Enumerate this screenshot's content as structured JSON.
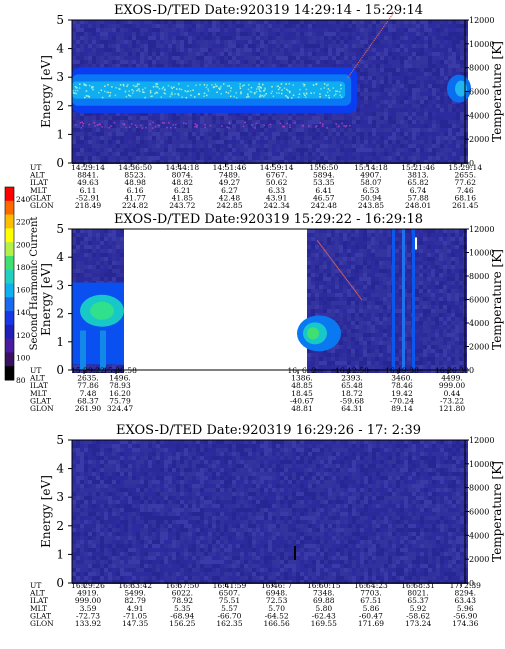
{
  "colorbar": {
    "label": "Second Harmonic Current",
    "ticks": [
      "240",
      "220",
      "200",
      "180",
      "160",
      "140",
      "120",
      "100",
      "80"
    ]
  },
  "chart_data": [
    {
      "type": "heatmap",
      "title": "EXOS-D/TED",
      "date_label": "Date:920319",
      "time_range": "14:29:14 - 15:29:14",
      "ylabel": "Energy [eV]",
      "ylabel_right": "Temperature [K]",
      "ylim": [
        0,
        5
      ],
      "yticks": [
        "0",
        "1",
        "2",
        "3",
        "4",
        "5"
      ],
      "ylim_right": [
        0,
        12000
      ],
      "yticks_right": [
        "0",
        "2000",
        "4000",
        "6000",
        "8000",
        "10000",
        "12000"
      ],
      "row_labels": [
        "UT",
        "ALT",
        "ILAT",
        "MLT",
        "GLAT",
        "GLON"
      ],
      "columns": [
        {
          "UT": "14:29:14",
          "ALT": "8841.",
          "ILAT": "49.63",
          "MLT": "6.11",
          "GLAT": "-52.91",
          "GLON": "218.49"
        },
        {
          "UT": "14:36:50",
          "ALT": "8523.",
          "ILAT": "48.98",
          "MLT": "6.16",
          "GLAT": "41.77",
          "GLON": "224.82"
        },
        {
          "UT": "14:44:18",
          "ALT": "8074.",
          "ILAT": "48.82",
          "MLT": "6.21",
          "GLAT": "41.85",
          "GLON": "243.72"
        },
        {
          "UT": "14:51:46",
          "ALT": "7489.",
          "ILAT": "49.27",
          "MLT": "6.27",
          "GLAT": "42.48",
          "GLON": "242.85"
        },
        {
          "UT": "14:59:14",
          "ALT": "6767.",
          "ILAT": "50.62",
          "MLT": "6.33",
          "GLAT": "43.91",
          "GLON": "242.34"
        },
        {
          "UT": "15:6:50",
          "ALT": "5894.",
          "ILAT": "53.35",
          "MLT": "6.41",
          "GLAT": "46.57",
          "GLON": "242.48"
        },
        {
          "UT": "15:14:18",
          "ALT": "4907.",
          "ILAT": "58.07",
          "MLT": "6.53",
          "GLAT": "50.94",
          "GLON": "243.85"
        },
        {
          "UT": "15:21:46",
          "ALT": "3813.",
          "ILAT": "65.82",
          "MLT": "6.74",
          "GLAT": "57.88",
          "GLON": "248.01"
        },
        {
          "UT": "15:29:14",
          "ALT": "2655.",
          "ILAT": "77.62",
          "MLT": "7.46",
          "GLAT": "68.16",
          "GLON": "261.45"
        }
      ]
    },
    {
      "type": "heatmap",
      "title": "EXOS-D/TED",
      "date_label": "Date:920319",
      "time_range": "15:29:22 - 16:29:18",
      "ylabel": "Energy [eV]",
      "ylabel_right": "Temperature [K]",
      "ylim": [
        0,
        5
      ],
      "yticks": [
        "0",
        "1",
        "2",
        "3",
        "4",
        "5"
      ],
      "ylim_right": [
        0,
        12000
      ],
      "yticks_right": [
        "0",
        "2000",
        "4000",
        "6000",
        "8000",
        "10000",
        "12000"
      ],
      "row_labels": [
        "UT",
        "ALT",
        "ILAT",
        "MLT",
        "GLAT",
        "GLON"
      ],
      "columns": [
        {
          "UT": "15:29:22",
          "ALT": "2635.",
          "ILAT": "77.86",
          "MLT": "7.48",
          "GLAT": "68.37",
          "GLON": "261.90"
        },
        {
          "UT": "15:36:58",
          "ALT": "1496.",
          "ILAT": "78.93",
          "MLT": "16.20",
          "GLAT": "75.79",
          "GLON": "324.47"
        },
        {
          "UT": "16: 6: 2",
          "ALT": "1386.",
          "ILAT": "48.85",
          "MLT": "18.45",
          "GLAT": "-40.67",
          "GLON": "48.81"
        },
        {
          "UT": "16:12:50",
          "ALT": "2393.",
          "ILAT": "65.48",
          "MLT": "18.72",
          "GLAT": "-59.68",
          "GLON": "64.31"
        },
        {
          "UT": "16:19:38",
          "ALT": "3460.",
          "ILAT": "78.46",
          "MLT": "19.42",
          "GLAT": "-70.24",
          "GLON": "89.14"
        },
        {
          "UT": "16:26:30",
          "ALT": "4499.",
          "ILAT": "999.00",
          "MLT": "0.44",
          "GLAT": "-73.22",
          "GLON": "121.80"
        }
      ]
    },
    {
      "type": "heatmap",
      "title": "EXOS-D/TED",
      "date_label": "Date:920319",
      "time_range": "16:29:26 - 17: 2:39",
      "ylabel": "Energy [eV]",
      "ylabel_right": "Temperature [K]",
      "ylim": [
        0,
        5
      ],
      "yticks": [
        "0",
        "1",
        "2",
        "3",
        "4",
        "5"
      ],
      "ylim_right": [
        0,
        12000
      ],
      "yticks_right": [
        "0",
        "2000",
        "4000",
        "6000",
        "8000",
        "10000",
        "12000"
      ],
      "row_labels": [
        "UT",
        "ALT",
        "ILAT",
        "MLT",
        "GLAT",
        "GLON"
      ],
      "columns": [
        {
          "UT": "16:29:26",
          "ALT": "4919.",
          "ILAT": "999.00",
          "MLT": "3.59",
          "GLAT": "-72.73",
          "GLON": "133.92"
        },
        {
          "UT": "16:33:42",
          "ALT": "5499.",
          "ILAT": "82.79",
          "MLT": "4.91",
          "GLAT": "-71.05",
          "GLON": "147.35"
        },
        {
          "UT": "16:37:50",
          "ALT": "6022.",
          "ILAT": "78.92",
          "MLT": "5.35",
          "GLAT": "-68.94",
          "GLON": "156.25"
        },
        {
          "UT": "16:41:59",
          "ALT": "6507.",
          "ILAT": "75.51",
          "MLT": "5.57",
          "GLAT": "-66.70",
          "GLON": "162.35"
        },
        {
          "UT": "16:46: 7",
          "ALT": "6948.",
          "ILAT": "72.53",
          "MLT": "5.70",
          "GLAT": "-64.52",
          "GLON": "166.56"
        },
        {
          "UT": "16:50:15",
          "ALT": "7348.",
          "ILAT": "69.88",
          "MLT": "5.80",
          "GLAT": "-62.43",
          "GLON": "169.55"
        },
        {
          "UT": "16:54:23",
          "ALT": "7703.",
          "ILAT": "67.51",
          "MLT": "5.86",
          "GLAT": "-60.47",
          "GLON": "171.69"
        },
        {
          "UT": "16:58:31",
          "ALT": "8021.",
          "ILAT": "65.37",
          "MLT": "5.92",
          "GLAT": "-58.62",
          "GLON": "173.24"
        },
        {
          "UT": "17: 2:39",
          "ALT": "8294.",
          "ILAT": "63.43",
          "MLT": "5.96",
          "GLAT": "-56.90",
          "GLON": "174.36"
        }
      ]
    }
  ]
}
